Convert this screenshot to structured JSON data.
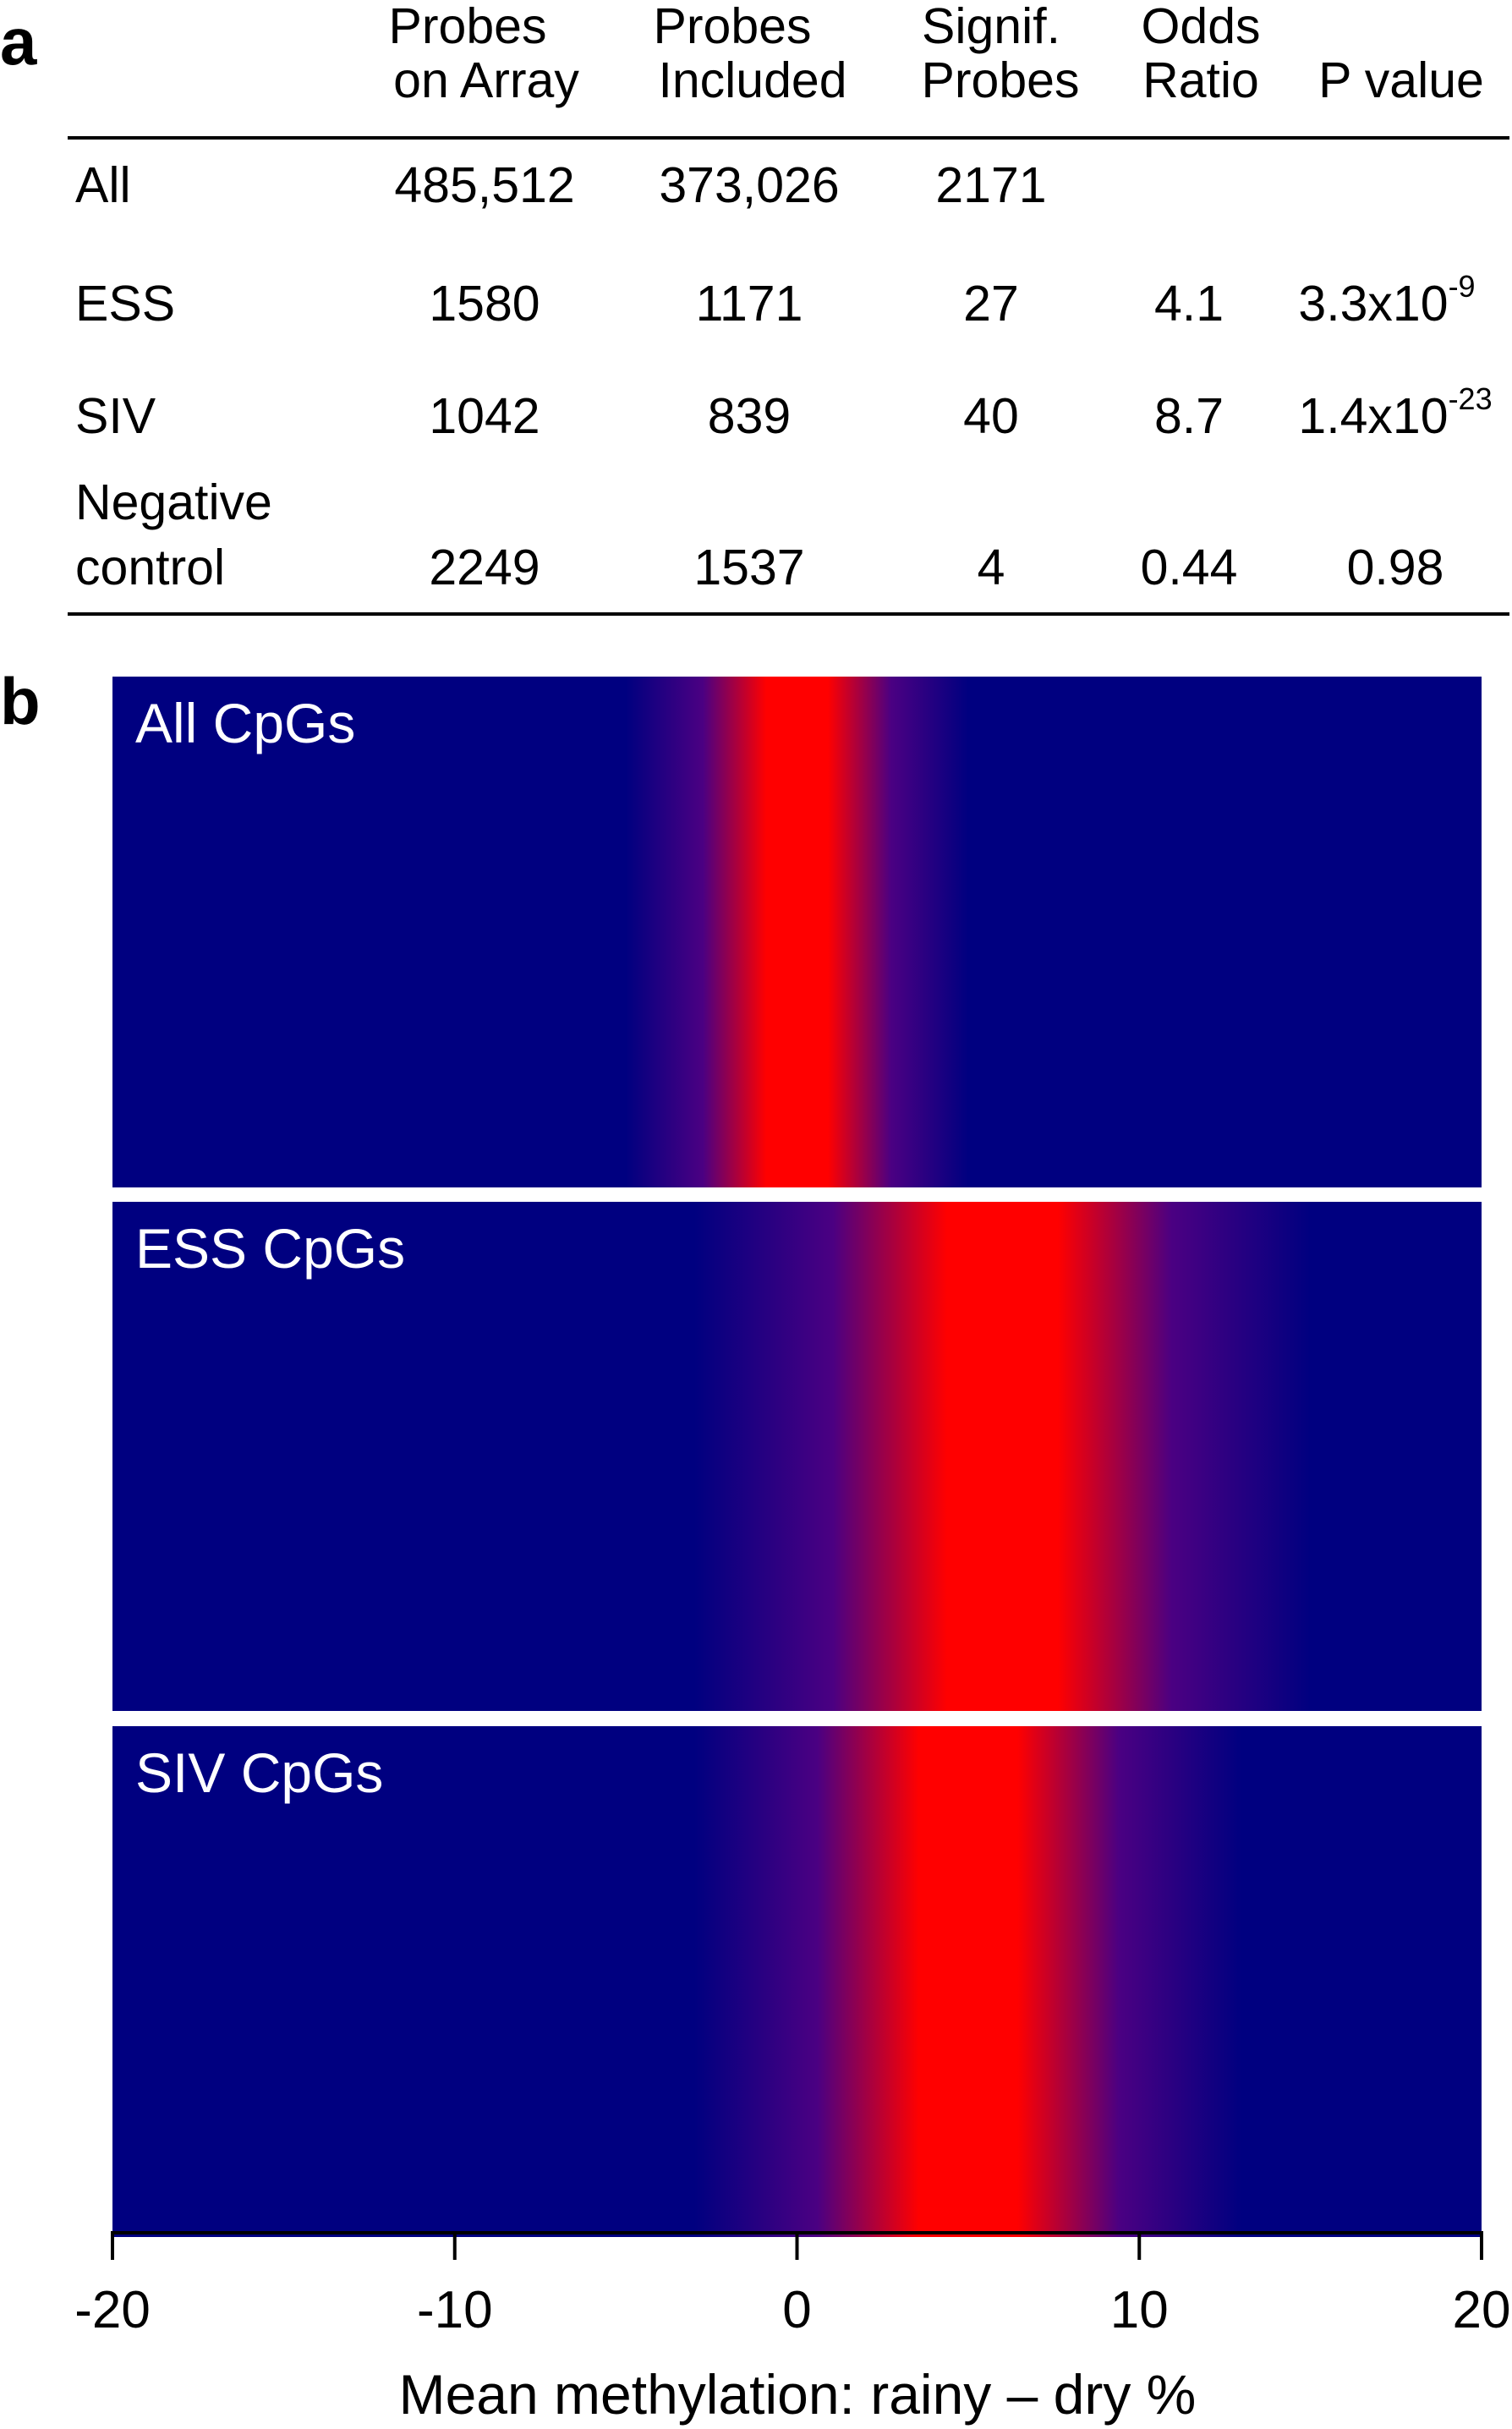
{
  "panel_a": {
    "label": "a",
    "headers": [
      [
        "Probes",
        "on Array"
      ],
      [
        "Probes",
        "Included"
      ],
      [
        "Signif.",
        "Probes"
      ],
      [
        "Odds",
        "Ratio"
      ],
      [
        "",
        "P value"
      ]
    ],
    "rows": [
      {
        "name": [
          "All"
        ],
        "probes_on_array": "485,512",
        "probes_included": "373,026",
        "signif_probes": "2171",
        "odds_ratio": "",
        "p_base": "",
        "p_exp": ""
      },
      {
        "name": [
          "ESS"
        ],
        "probes_on_array": "1580",
        "probes_included": "1171",
        "signif_probes": "27",
        "odds_ratio": "4.1",
        "p_base": "3.3x10",
        "p_exp": "-9"
      },
      {
        "name": [
          "SIV"
        ],
        "probes_on_array": "1042",
        "probes_included": "839",
        "signif_probes": "40",
        "odds_ratio": "8.7",
        "p_base": "1.4x10",
        "p_exp": "-23"
      },
      {
        "name": [
          "Negative",
          "control"
        ],
        "probes_on_array": "2249",
        "probes_included": "1537",
        "signif_probes": "4",
        "odds_ratio": "0.44",
        "p_base": "0.98",
        "p_exp": ""
      }
    ]
  },
  "panel_b": {
    "label": "b"
  },
  "chart_data": {
    "type": "heatmap",
    "xlabel": "Mean methylation: rainy – dry %",
    "xlim": [
      -20,
      20
    ],
    "xticks": [
      -20,
      -10,
      0,
      10,
      20
    ],
    "series": [
      {
        "name": "All CpGs",
        "center": 0,
        "spread": 5
      },
      {
        "name": "ESS CpGs",
        "center": 6,
        "spread": 9
      },
      {
        "name": "SIV CpGs",
        "center": 5,
        "spread": 8
      }
    ],
    "colors": {
      "low": "#000080",
      "mid": "#4B0082",
      "high": "#FF0000"
    },
    "legend": "none",
    "grid": false
  }
}
